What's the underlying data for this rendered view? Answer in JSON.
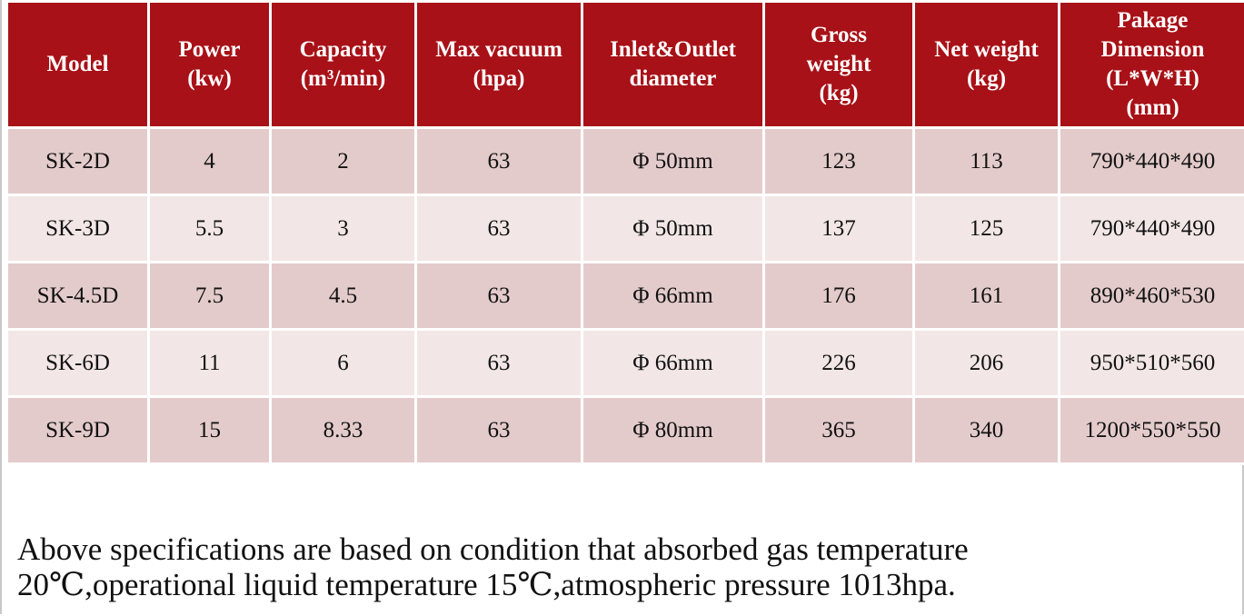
{
  "table": {
    "headers": [
      [
        "Model"
      ],
      [
        "Power",
        "(kw)"
      ],
      [
        "Capacity",
        "(m³/min)"
      ],
      [
        "Max vacuum",
        "(hpa)"
      ],
      [
        "Inlet&Outlet",
        "diameter"
      ],
      [
        "Gross",
        "weight",
        "(kg)"
      ],
      [
        "Net weight",
        "(kg)"
      ],
      [
        "Pakage",
        "Dimension",
        "(L*W*H)",
        "(mm)"
      ]
    ],
    "rows": [
      [
        "SK-2D",
        "4",
        "2",
        "63",
        "Φ 50mm",
        "123",
        "113",
        "790*440*490"
      ],
      [
        "SK-3D",
        "5.5",
        "3",
        "63",
        "Φ 50mm",
        "137",
        "125",
        "790*440*490"
      ],
      [
        "SK-4.5D",
        "7.5",
        "4.5",
        "63",
        "Φ 66mm",
        "176",
        "161",
        "890*460*530"
      ],
      [
        "SK-6D",
        "11",
        "6",
        "63",
        "Φ 66mm",
        "226",
        "206",
        "950*510*560"
      ],
      [
        "SK-9D",
        "15",
        "8.33",
        "63",
        "Φ 80mm",
        "365",
        "340",
        "1200*550*550"
      ]
    ]
  },
  "note": {
    "line1": "Above specifications are based on condition that absorbed gas temperature",
    "line2": "20℃,operational liquid temperature 15℃,atmospheric pressure 1013hpa."
  },
  "colors": {
    "header_bg": "#a81117",
    "row_dark": "#e4cbcb",
    "row_light": "#f2e7e6"
  }
}
